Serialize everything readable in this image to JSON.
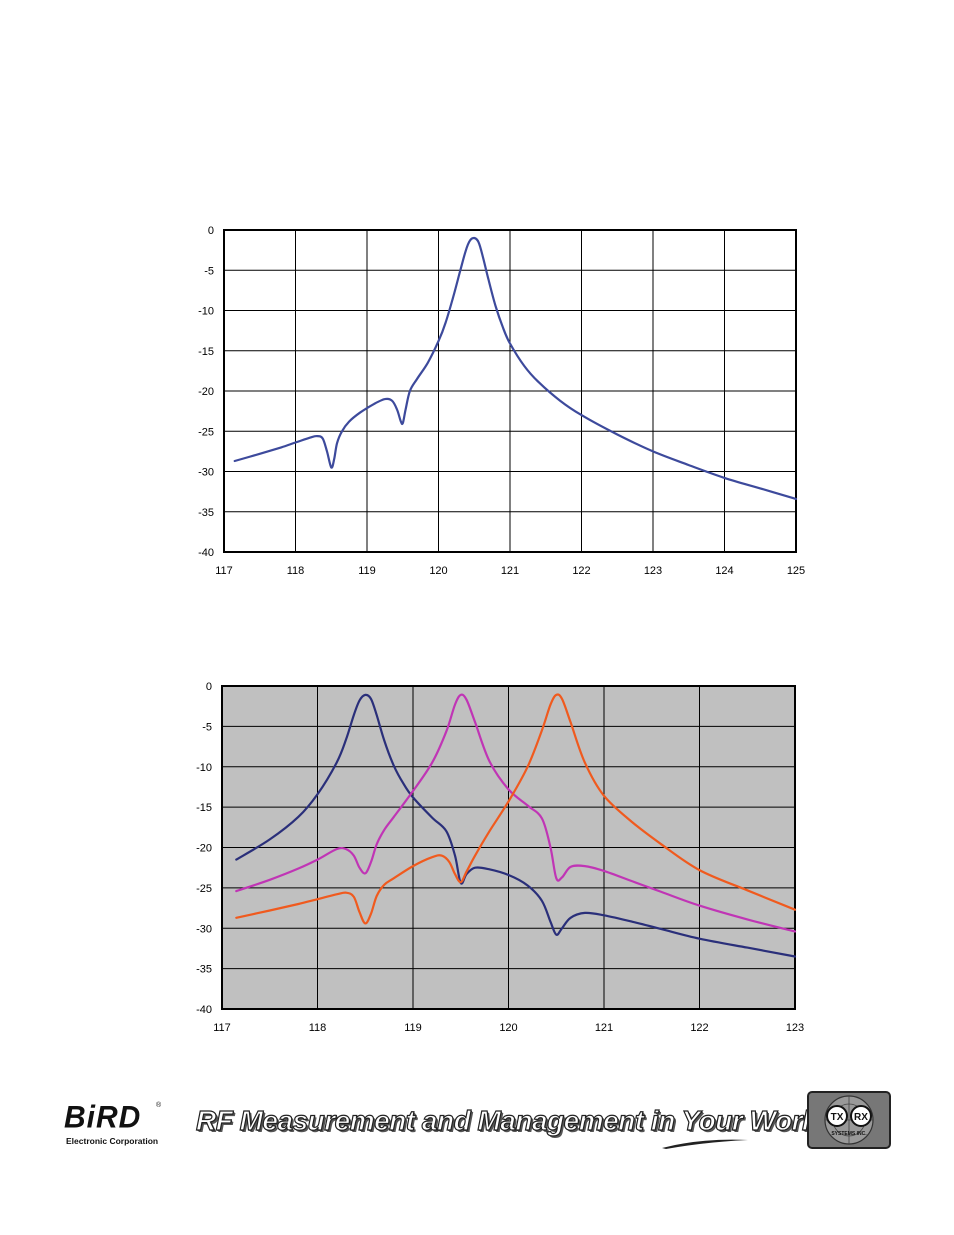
{
  "chart_data": [
    {
      "type": "line",
      "title": "",
      "xlabel": "",
      "ylabel": "",
      "xlim": [
        117,
        125
      ],
      "ylim": [
        -40,
        0
      ],
      "x_ticks": [
        "117",
        "118",
        "119",
        "120",
        "121",
        "122",
        "123",
        "124",
        "125"
      ],
      "y_ticks": [
        "0",
        "-5",
        "-10",
        "-15",
        "-20",
        "-25",
        "-30",
        "-35",
        "-40"
      ],
      "grid": true,
      "background": "#ffffff",
      "series": [
        {
          "color": "#3d4a9c",
          "x": [
            117.15,
            117.5,
            117.8,
            118.0,
            118.2,
            118.3,
            118.38,
            118.44,
            118.5,
            118.54,
            118.58,
            118.65,
            118.75,
            118.9,
            119.1,
            119.25,
            119.35,
            119.42,
            119.47,
            119.5,
            119.54,
            119.6,
            119.7,
            119.85,
            120.0,
            120.1,
            120.2,
            120.3,
            120.38,
            120.44,
            120.5,
            120.56,
            120.62,
            120.7,
            120.8,
            120.9,
            121.0,
            121.2,
            121.4,
            121.7,
            122.0,
            122.5,
            123.0,
            123.5,
            124.0,
            124.5,
            125.0
          ],
          "y": [
            -28.7,
            -27.8,
            -27.0,
            -26.4,
            -25.8,
            -25.6,
            -25.9,
            -27.5,
            -29.5,
            -28.5,
            -26.5,
            -25.0,
            -23.8,
            -22.7,
            -21.6,
            -21.0,
            -21.2,
            -22.3,
            -23.7,
            -24.0,
            -22.3,
            -20.0,
            -18.5,
            -16.5,
            -13.8,
            -11.5,
            -8.5,
            -5.2,
            -2.6,
            -1.3,
            -1.0,
            -1.5,
            -3.3,
            -6.2,
            -9.5,
            -12.1,
            -14.1,
            -16.9,
            -18.9,
            -21.2,
            -23.0,
            -25.4,
            -27.5,
            -29.2,
            -30.8,
            -32.1,
            -33.4
          ]
        }
      ]
    },
    {
      "type": "line",
      "title": "",
      "xlabel": "",
      "ylabel": "",
      "xlim": [
        117,
        123
      ],
      "ylim": [
        -40,
        0
      ],
      "x_ticks": [
        "117",
        "118",
        "119",
        "120",
        "121",
        "122",
        "123"
      ],
      "y_ticks": [
        "0",
        "-5",
        "-10",
        "-15",
        "-20",
        "-25",
        "-30",
        "-35",
        "-40"
      ],
      "grid": true,
      "background": "#c0c0c0",
      "series": [
        {
          "color": "#2a2f7a",
          "x": [
            117.15,
            117.5,
            117.8,
            118.0,
            118.2,
            118.3,
            118.38,
            118.44,
            118.5,
            118.56,
            118.62,
            118.7,
            118.8,
            118.9,
            119.0,
            119.2,
            119.35,
            119.44,
            119.5,
            119.56,
            119.65,
            119.8,
            120.0,
            120.2,
            120.35,
            120.44,
            120.5,
            120.56,
            120.65,
            120.8,
            121.0,
            121.3,
            121.6,
            122.0,
            122.5,
            123.0
          ],
          "y": [
            -21.5,
            -19.0,
            -16.2,
            -13.4,
            -9.5,
            -6.6,
            -3.6,
            -1.8,
            -1.1,
            -1.6,
            -3.6,
            -6.8,
            -9.9,
            -12.1,
            -13.8,
            -16.3,
            -18.0,
            -21.0,
            -24.4,
            -23.3,
            -22.5,
            -22.7,
            -23.4,
            -24.7,
            -26.6,
            -29.2,
            -30.8,
            -30.0,
            -28.7,
            -28.1,
            -28.4,
            -29.2,
            -30.1,
            -31.3,
            -32.4,
            -33.5
          ]
        },
        {
          "color": "#c035b5",
          "x": [
            117.15,
            117.5,
            117.8,
            118.0,
            118.2,
            118.3,
            118.38,
            118.44,
            118.5,
            118.56,
            118.62,
            118.7,
            118.8,
            119.0,
            119.2,
            119.35,
            119.44,
            119.5,
            119.56,
            119.65,
            119.8,
            120.0,
            120.2,
            120.35,
            120.44,
            120.5,
            120.56,
            120.65,
            120.8,
            121.0,
            121.3,
            121.6,
            122.0,
            122.5,
            123.0
          ],
          "y": [
            -25.4,
            -24.0,
            -22.6,
            -21.5,
            -20.2,
            -20.2,
            -21.0,
            -22.5,
            -23.2,
            -21.8,
            -19.6,
            -17.8,
            -16.2,
            -13.0,
            -9.5,
            -5.6,
            -2.3,
            -1.1,
            -1.7,
            -4.5,
            -9.3,
            -12.8,
            -14.8,
            -16.4,
            -20.0,
            -23.8,
            -23.7,
            -22.4,
            -22.3,
            -22.9,
            -24.2,
            -25.5,
            -27.2,
            -28.9,
            -30.4
          ]
        },
        {
          "color": "#f05a1e",
          "x": [
            117.15,
            117.5,
            117.8,
            118.0,
            118.2,
            118.3,
            118.38,
            118.44,
            118.5,
            118.56,
            118.62,
            118.7,
            118.8,
            119.0,
            119.2,
            119.3,
            119.38,
            119.44,
            119.5,
            119.56,
            119.65,
            119.8,
            120.0,
            120.2,
            120.35,
            120.44,
            120.5,
            120.56,
            120.65,
            120.8,
            121.0,
            121.3,
            121.6,
            122.0,
            122.5,
            123.0
          ],
          "y": [
            -28.7,
            -27.8,
            -27.0,
            -26.4,
            -25.8,
            -25.6,
            -26.1,
            -28.0,
            -29.4,
            -28.2,
            -26.0,
            -24.6,
            -23.8,
            -22.3,
            -21.2,
            -21.0,
            -21.8,
            -23.3,
            -24.3,
            -23.0,
            -21.0,
            -18.0,
            -14.3,
            -10.0,
            -5.5,
            -2.3,
            -1.1,
            -1.6,
            -4.5,
            -9.5,
            -13.6,
            -16.9,
            -19.6,
            -22.8,
            -25.3,
            -27.7
          ]
        }
      ]
    }
  ],
  "footer": {
    "bird_logo_text": "BiRD",
    "bird_registered": "®",
    "bird_company": "Electronic Corporation",
    "tagline": "RF Measurement and Management in Your World",
    "txrx_left": "TX",
    "txrx_right": "RX",
    "txrx_sub": "SYSTEMS INC."
  }
}
